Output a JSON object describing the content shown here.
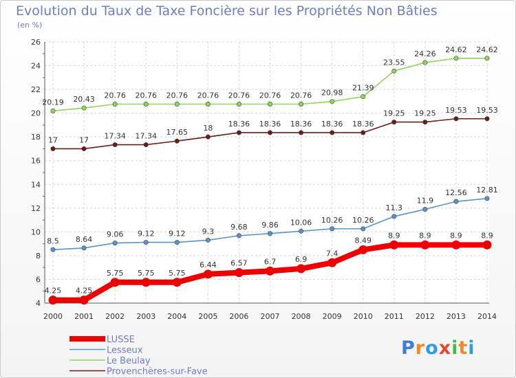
{
  "title": "Evolution du Taux de Taxe Foncière sur les Propriétés Non Bâties",
  "subtitle": "(en %)",
  "brand": {
    "letters": [
      "P",
      "r",
      "o",
      "x",
      "i",
      "t",
      "i"
    ],
    "colors": [
      "#3a7fd5",
      "#f08a24",
      "#2f9ee0",
      "#e34a2c",
      "#4cb84c",
      "#f08a24",
      "#2f9ee0"
    ]
  },
  "chart_data": {
    "type": "line",
    "x": [
      2000,
      2001,
      2002,
      2003,
      2004,
      2005,
      2006,
      2007,
      2008,
      2009,
      2010,
      2011,
      2012,
      2013,
      2014
    ],
    "ylim": [
      4,
      26
    ],
    "yticks": [
      4,
      6,
      8,
      10,
      12,
      14,
      16,
      18,
      20,
      22,
      24,
      26
    ],
    "grid": true,
    "legend_position": "bottom-left",
    "series": [
      {
        "name": "Provenchères-sur-Fave",
        "color": "#6b1a1a",
        "values": [
          17,
          17,
          17.34,
          17.34,
          17.65,
          18,
          18.36,
          18.36,
          18.36,
          18.36,
          18.36,
          19.25,
          19.25,
          19.53,
          19.53
        ],
        "labels": [
          "17",
          "17",
          "17.34",
          "17.34",
          "17.65",
          "18",
          "18.36",
          "18.36",
          "18.36",
          "18.36",
          "18.36",
          "19.25",
          "19.25",
          "19.53",
          "19.53"
        ]
      },
      {
        "name": "Le Beulay",
        "color": "#8fd45e",
        "values": [
          20.19,
          20.43,
          20.76,
          20.76,
          20.76,
          20.76,
          20.76,
          20.76,
          20.76,
          20.98,
          21.39,
          23.55,
          24.26,
          24.62,
          24.62
        ],
        "labels": [
          "20.19",
          "20.43",
          "20.76",
          "20.76",
          "20.76",
          "20.76",
          "20.76",
          "20.76",
          "20.76",
          "20.98",
          "21.39",
          "23.55",
          "24.26",
          "24.62",
          "24.62"
        ]
      },
      {
        "name": "Lesseux",
        "color": "#5a93c8",
        "values": [
          8.5,
          8.64,
          9.06,
          9.12,
          9.12,
          9.3,
          9.68,
          9.86,
          10.06,
          10.26,
          10.26,
          11.3,
          11.9,
          12.56,
          12.81
        ],
        "labels": [
          "8.5",
          "8.64",
          "9.06",
          "9.12",
          "9.12",
          "9.3",
          "9.68",
          "9.86",
          "10.06",
          "10.26",
          "10.26",
          "11.3",
          "11.9",
          "12.56",
          "12.81"
        ]
      },
      {
        "name": "LUSSE",
        "color": "#ee0000",
        "values": [
          4.25,
          4.25,
          5.75,
          5.75,
          5.75,
          6.44,
          6.57,
          6.7,
          6.9,
          7.4,
          8.49,
          8.9,
          8.9,
          8.9,
          8.9
        ],
        "labels": [
          "4.25",
          "4.25",
          "5.75",
          "5.75",
          "5.75",
          "6.44",
          "6.57",
          "6.7",
          "6.9",
          "7.4",
          "8.49",
          "8.9",
          "8.9",
          "8.9",
          "8.9"
        ]
      }
    ],
    "legend": [
      "LUSSE",
      "Lesseux",
      "Le Beulay",
      "Provenchères-sur-Fave"
    ]
  }
}
